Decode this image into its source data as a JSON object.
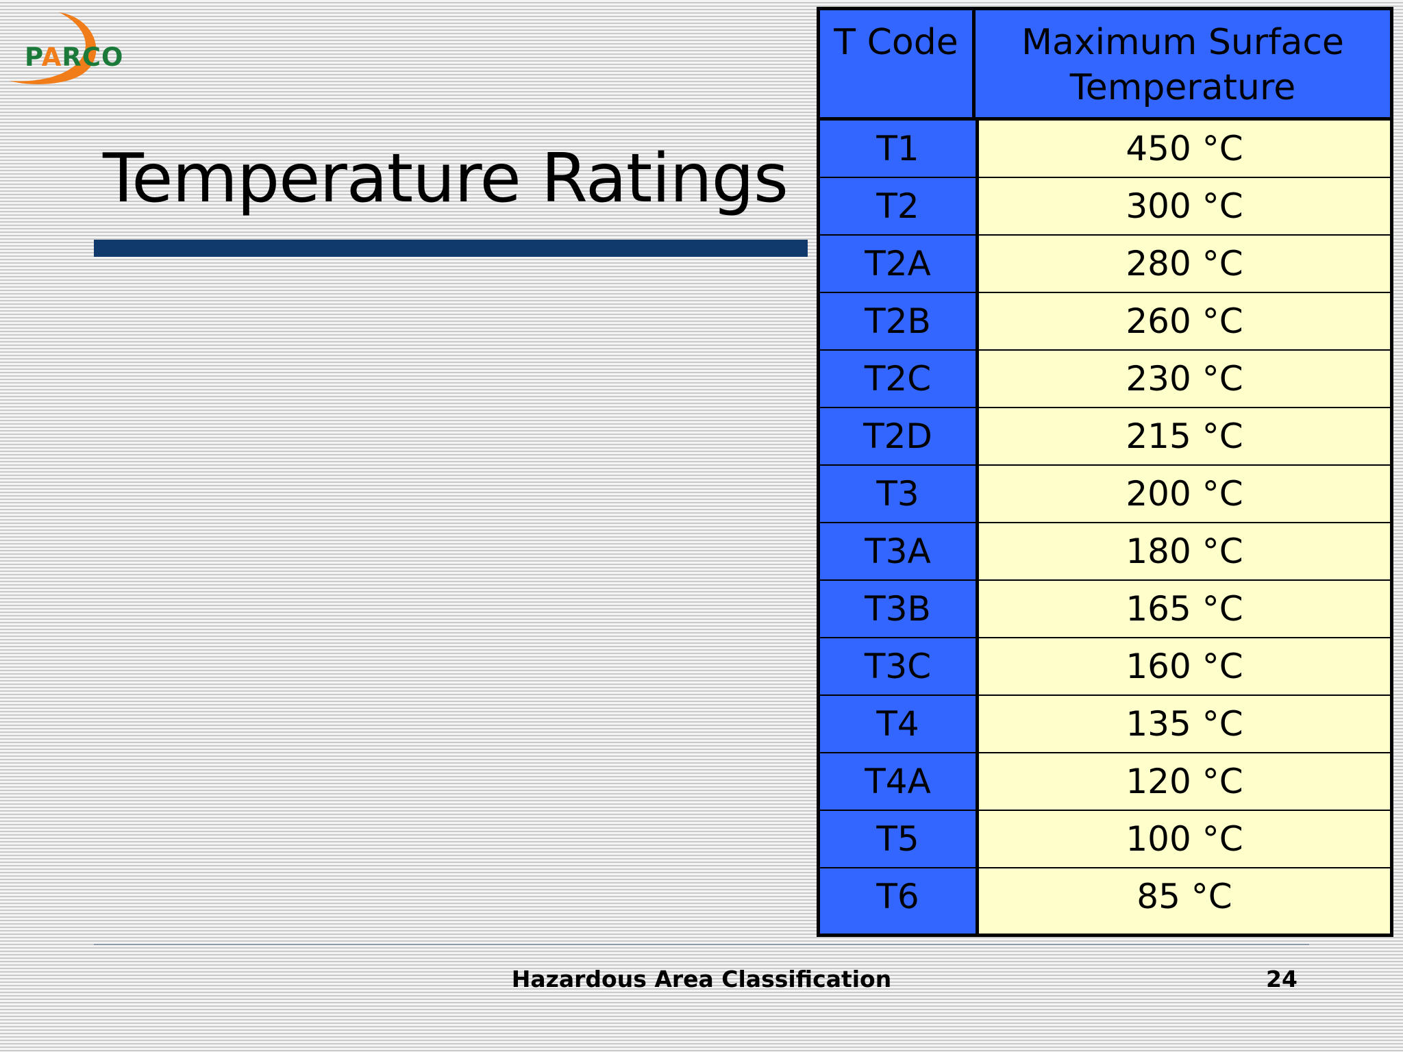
{
  "logo": {
    "text_part1": "P",
    "text_accent": "A",
    "text_part2": "RCO"
  },
  "slide": {
    "title": "Temperature Ratings",
    "footer": "Hazardous Area Classification",
    "page_number": "24"
  },
  "table": {
    "headers": [
      "T Code",
      "Maximum Surface Temperature"
    ],
    "rows": [
      [
        "T1",
        "450 °C"
      ],
      [
        "T2",
        "300 °C"
      ],
      [
        "T2A",
        "280 °C"
      ],
      [
        "T2B",
        "260 °C"
      ],
      [
        "T2C",
        "230 °C"
      ],
      [
        "T2D",
        "215 °C"
      ],
      [
        "T3",
        "200 °C"
      ],
      [
        "T3A",
        "180 °C"
      ],
      [
        "T3B",
        "165 °C"
      ],
      [
        "T3C",
        "160 °C"
      ],
      [
        "T4",
        "135 °C"
      ],
      [
        "T4A",
        "120 °C"
      ],
      [
        "T5",
        "100 °C"
      ],
      [
        "T6",
        "85 °C"
      ]
    ]
  },
  "colors": {
    "code_column": "#3366ff",
    "value_column": "#ffffcc",
    "title_bar": "#0f3a6b",
    "logo_green": "#1b7a3a",
    "logo_orange": "#f07d1a"
  }
}
